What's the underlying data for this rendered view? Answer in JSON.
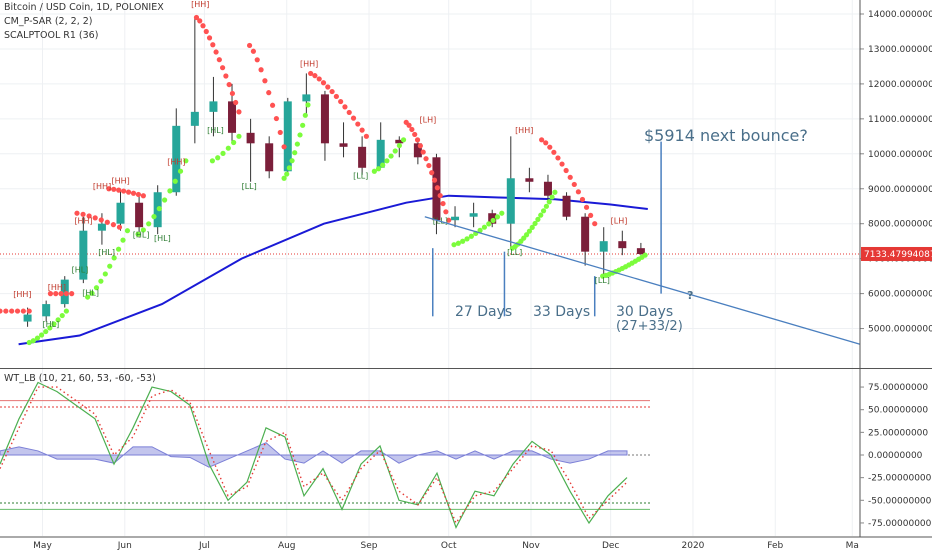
{
  "header": {
    "symbol": "Bitcoin / USD Coin, 1D, POLONIEX",
    "indicator_1": "CM_P-SAR (2, 2, 2)",
    "indicator_2": "SCALPTOOL R1 (36)",
    "oscillator": "WT_LB (10, 21, 60, 53, -60, -53)"
  },
  "colors": {
    "candle_up": "#26a69a",
    "candle_down": "#7b1f3a",
    "sar_down": "#ff5252",
    "sar_up": "#7cfc3c",
    "ma": "#1a1ad6",
    "trend": "#4a7fbf",
    "annotation": "#4a6f8a",
    "current_price": "#e53935",
    "wt_green": "#4caf50",
    "wt_red": "#e53935",
    "wt_hist": "#7b7fd6"
  },
  "chart_data": {
    "type": "candlestick",
    "price_axis": {
      "ticks": [
        5000,
        6000,
        7000,
        8000,
        9000,
        10000,
        11000,
        12000,
        13000,
        14000
      ],
      "tick_labels": [
        "5000.00000000",
        "6000.00000000",
        "7000.00000000",
        "8000.00000000",
        "9000.00000000",
        "10000.00000000",
        "11000.00000000",
        "12000.00000000",
        "13000.00000000",
        "14000.00000000"
      ],
      "current_price": 7133.47994087,
      "current_price_label": "7133.47994087"
    },
    "time_axis": {
      "labels": [
        "May",
        "Jun",
        "Jul",
        "Aug",
        "Sep",
        "Oct",
        "Nov",
        "Dec",
        "2020",
        "Feb",
        "Ma"
      ]
    },
    "candles_weekly_approx": [
      {
        "t": "2019-04-22",
        "o": 5200,
        "h": 5600,
        "l": 5050,
        "c": 5400
      },
      {
        "t": "2019-04-29",
        "o": 5350,
        "h": 5800,
        "l": 5200,
        "c": 5700
      },
      {
        "t": "2019-05-06",
        "o": 5700,
        "h": 6500,
        "l": 5600,
        "c": 6400
      },
      {
        "t": "2019-05-13",
        "o": 6400,
        "h": 8200,
        "l": 6300,
        "c": 7800
      },
      {
        "t": "2019-05-20",
        "o": 7800,
        "h": 8300,
        "l": 7400,
        "c": 8000
      },
      {
        "t": "2019-05-27",
        "o": 8000,
        "h": 9000,
        "l": 7800,
        "c": 8600
      },
      {
        "t": "2019-06-03",
        "o": 8600,
        "h": 8800,
        "l": 7600,
        "c": 7900
      },
      {
        "t": "2019-06-10",
        "o": 7900,
        "h": 9100,
        "l": 7700,
        "c": 8900
      },
      {
        "t": "2019-06-17",
        "o": 8900,
        "h": 11300,
        "l": 8800,
        "c": 10800
      },
      {
        "t": "2019-06-24",
        "o": 10800,
        "h": 13900,
        "l": 10300,
        "c": 11200
      },
      {
        "t": "2019-07-01",
        "o": 11200,
        "h": 12200,
        "l": 10500,
        "c": 11500
      },
      {
        "t": "2019-07-08",
        "o": 11500,
        "h": 12000,
        "l": 10300,
        "c": 10600
      },
      {
        "t": "2019-07-15",
        "o": 10600,
        "h": 11000,
        "l": 9200,
        "c": 10300
      },
      {
        "t": "2019-07-22",
        "o": 10300,
        "h": 10500,
        "l": 9300,
        "c": 9500
      },
      {
        "t": "2019-07-29",
        "o": 9500,
        "h": 11600,
        "l": 9400,
        "c": 11500
      },
      {
        "t": "2019-08-05",
        "o": 11500,
        "h": 12300,
        "l": 11100,
        "c": 11700
      },
      {
        "t": "2019-08-12",
        "o": 11700,
        "h": 11800,
        "l": 9800,
        "c": 10300
      },
      {
        "t": "2019-08-19",
        "o": 10300,
        "h": 10900,
        "l": 9900,
        "c": 10200
      },
      {
        "t": "2019-08-26",
        "o": 10200,
        "h": 10500,
        "l": 9400,
        "c": 9600
      },
      {
        "t": "2019-09-02",
        "o": 9600,
        "h": 10900,
        "l": 9600,
        "c": 10400
      },
      {
        "t": "2019-09-09",
        "o": 10400,
        "h": 10500,
        "l": 9900,
        "c": 10300
      },
      {
        "t": "2019-09-16",
        "o": 10300,
        "h": 10400,
        "l": 9700,
        "c": 9900
      },
      {
        "t": "2019-09-23",
        "o": 9900,
        "h": 10000,
        "l": 7700,
        "c": 8100
      },
      {
        "t": "2019-09-30",
        "o": 8100,
        "h": 8500,
        "l": 7900,
        "c": 8200
      },
      {
        "t": "2019-10-07",
        "o": 8200,
        "h": 8600,
        "l": 7900,
        "c": 8300
      },
      {
        "t": "2019-10-14",
        "o": 8300,
        "h": 8400,
        "l": 7900,
        "c": 8000
      },
      {
        "t": "2019-10-21",
        "o": 8000,
        "h": 10500,
        "l": 7300,
        "c": 9300
      },
      {
        "t": "2019-10-28",
        "o": 9300,
        "h": 9600,
        "l": 8900,
        "c": 9200
      },
      {
        "t": "2019-11-04",
        "o": 9200,
        "h": 9400,
        "l": 8600,
        "c": 8800
      },
      {
        "t": "2019-11-11",
        "o": 8800,
        "h": 8900,
        "l": 8100,
        "c": 8200
      },
      {
        "t": "2019-11-18",
        "o": 8200,
        "h": 8300,
        "l": 6800,
        "c": 7200
      },
      {
        "t": "2019-11-25",
        "o": 7200,
        "h": 7900,
        "l": 6500,
        "c": 7500
      },
      {
        "t": "2019-12-02",
        "o": 7500,
        "h": 7800,
        "l": 7100,
        "c": 7300
      },
      {
        "t": "2019-12-09",
        "o": 7300,
        "h": 7450,
        "l": 7100,
        "c": 7133
      }
    ],
    "swing_labels": [
      {
        "text": "[HH]",
        "t": "2019-04-20",
        "price": 5900
      },
      {
        "text": "[HH]",
        "t": "2019-05-03",
        "price": 6100
      },
      {
        "text": "[HH]",
        "t": "2019-05-13",
        "price": 8000
      },
      {
        "text": "[HH]",
        "t": "2019-05-20",
        "price": 9000
      },
      {
        "text": "[HH]",
        "t": "2019-05-27",
        "price": 9150
      },
      {
        "text": "[HH]",
        "t": "2019-06-17",
        "price": 9700
      },
      {
        "text": "[HH]",
        "t": "2019-06-26",
        "price": 14200
      },
      {
        "text": "[HH]",
        "t": "2019-08-06",
        "price": 12500
      },
      {
        "text": "[HL]",
        "t": "2019-05-01",
        "price": 5050
      },
      {
        "text": "[HL]",
        "t": "2019-05-12",
        "price": 6600
      },
      {
        "text": "[HL]",
        "t": "2019-05-16",
        "price": 5950
      },
      {
        "text": "[HL]",
        "t": "2019-05-22",
        "price": 7100
      },
      {
        "text": "[HL]",
        "t": "2019-06-04",
        "price": 7600
      },
      {
        "text": "[HL]",
        "t": "2019-06-12",
        "price": 7500
      },
      {
        "text": "[HL]",
        "t": "2019-07-02",
        "price": 10600
      },
      {
        "text": "[LL]",
        "t": "2019-07-15",
        "price": 9000
      },
      {
        "text": "[LL]",
        "t": "2019-08-26",
        "price": 9300
      },
      {
        "text": "[LL]",
        "t": "2019-09-25",
        "price": 8000
      },
      {
        "text": "[LL]",
        "t": "2019-10-23",
        "price": 7100
      },
      {
        "text": "[LL]",
        "t": "2019-11-25",
        "price": 6300
      },
      {
        "text": "[HH]",
        "t": "2019-10-26",
        "price": 10600
      },
      {
        "text": "[LH]",
        "t": "2019-09-20",
        "price": 10900
      },
      {
        "text": "[LH]",
        "t": "2019-12-01",
        "price": 8000
      }
    ],
    "annotations": {
      "bounce_label": "$5914 next bounce?",
      "days_1": "27 Days",
      "days_2": "33 Days",
      "days_3": "30 Days",
      "days_3_note": "(27+33/2)",
      "question": "?"
    },
    "oscillator": {
      "name": "WT_LB (10, 21, 60, 53, -60, -53)",
      "ticks": [
        75,
        50,
        25,
        0,
        -25,
        -50,
        -75
      ],
      "tick_labels": [
        "75.00000000",
        "50.00000000",
        "25.00000000",
        "0.00000000",
        "-25.00000000",
        "-50.00000000",
        "-75.00000000"
      ],
      "overbought_levels": [
        60,
        53
      ],
      "oversold_levels": [
        -60,
        -53
      ],
      "wt1_weekly_approx": [
        -10,
        40,
        80,
        70,
        55,
        40,
        -10,
        30,
        75,
        70,
        55,
        -10,
        -50,
        -30,
        30,
        20,
        -45,
        -15,
        -60,
        -10,
        10,
        -50,
        -55,
        -20,
        -80,
        -40,
        -45,
        -10,
        15,
        0,
        -40,
        -75,
        -45,
        -25
      ],
      "wt2_weekly_approx": [
        -15,
        30,
        75,
        75,
        60,
        45,
        0,
        20,
        65,
        72,
        58,
        5,
        -45,
        -35,
        15,
        25,
        -35,
        -20,
        -50,
        -15,
        5,
        -40,
        -55,
        -25,
        -75,
        -45,
        -40,
        -15,
        10,
        5,
        -30,
        -70,
        -50,
        -30
      ]
    }
  }
}
